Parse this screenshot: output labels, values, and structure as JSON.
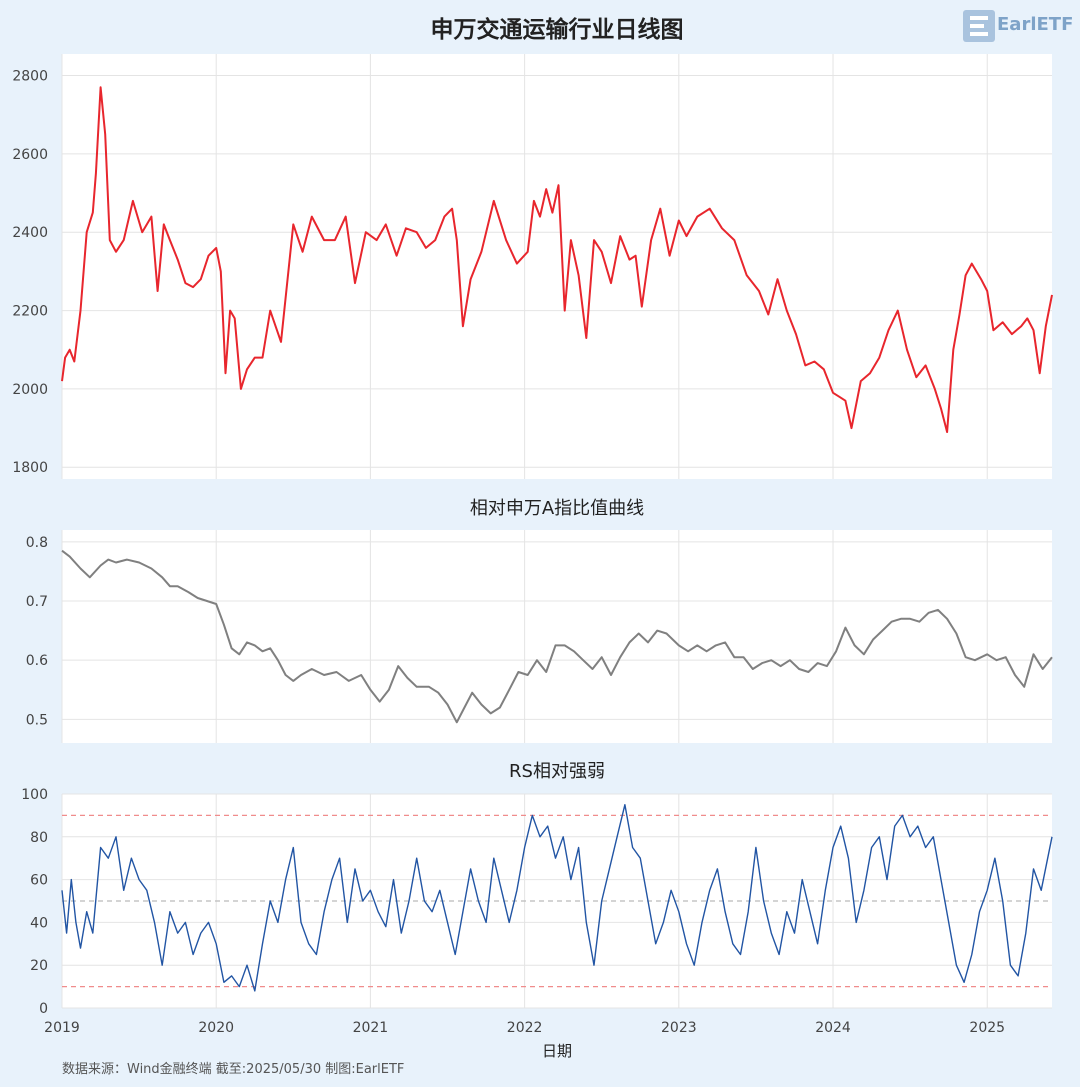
{
  "logo": {
    "text": "EarlETF",
    "icon": "e-logo-icon",
    "color": "#7ea3c8"
  },
  "source": "数据来源：Wind金融终端 截至:2025/05/30 制图:EarlETF",
  "chart_data": [
    {
      "type": "line",
      "title": "申万交通运输行业日线图",
      "color": "#e8262d",
      "xlim": [
        2019.0,
        2025.42
      ],
      "ylim": [
        1770,
        2855
      ],
      "yticks": [
        1800,
        2000,
        2200,
        2400,
        2600,
        2800
      ],
      "grid": true,
      "x": [
        2019.0,
        2019.02,
        2019.05,
        2019.08,
        2019.12,
        2019.16,
        2019.2,
        2019.22,
        2019.25,
        2019.28,
        2019.31,
        2019.35,
        2019.4,
        2019.46,
        2019.52,
        2019.58,
        2019.62,
        2019.66,
        2019.7,
        2019.75,
        2019.8,
        2019.85,
        2019.9,
        2019.95,
        2020.0,
        2020.03,
        2020.06,
        2020.09,
        2020.12,
        2020.16,
        2020.2,
        2020.25,
        2020.3,
        2020.35,
        2020.42,
        2020.5,
        2020.56,
        2020.62,
        2020.7,
        2020.77,
        2020.84,
        2020.9,
        2020.97,
        2021.04,
        2021.1,
        2021.17,
        2021.23,
        2021.3,
        2021.36,
        2021.42,
        2021.48,
        2021.53,
        2021.56,
        2021.6,
        2021.65,
        2021.72,
        2021.8,
        2021.88,
        2021.95,
        2022.02,
        2022.06,
        2022.1,
        2022.14,
        2022.18,
        2022.22,
        2022.26,
        2022.3,
        2022.35,
        2022.4,
        2022.45,
        2022.5,
        2022.56,
        2022.62,
        2022.68,
        2022.72,
        2022.76,
        2022.82,
        2022.88,
        2022.94,
        2023.0,
        2023.05,
        2023.12,
        2023.2,
        2023.28,
        2023.36,
        2023.44,
        2023.52,
        2023.58,
        2023.64,
        2023.7,
        2023.76,
        2023.82,
        2023.88,
        2023.94,
        2024.0,
        2024.04,
        2024.08,
        2024.12,
        2024.18,
        2024.24,
        2024.3,
        2024.36,
        2024.42,
        2024.48,
        2024.54,
        2024.6,
        2024.66,
        2024.7,
        2024.74,
        2024.78,
        2024.82,
        2024.86,
        2024.9,
        2024.96,
        2025.0,
        2025.04,
        2025.1,
        2025.16,
        2025.22,
        2025.26,
        2025.3,
        2025.34,
        2025.38,
        2025.42
      ],
      "y": [
        2020,
        2080,
        2100,
        2070,
        2200,
        2400,
        2450,
        2550,
        2770,
        2650,
        2380,
        2350,
        2380,
        2480,
        2400,
        2440,
        2250,
        2420,
        2380,
        2330,
        2270,
        2260,
        2280,
        2340,
        2360,
        2300,
        2040,
        2200,
        2180,
        2000,
        2050,
        2080,
        2080,
        2200,
        2120,
        2420,
        2350,
        2440,
        2380,
        2380,
        2440,
        2270,
        2400,
        2380,
        2420,
        2340,
        2410,
        2400,
        2360,
        2380,
        2440,
        2460,
        2380,
        2160,
        2280,
        2350,
        2480,
        2380,
        2320,
        2350,
        2480,
        2440,
        2510,
        2450,
        2520,
        2200,
        2380,
        2290,
        2130,
        2380,
        2350,
        2270,
        2390,
        2330,
        2340,
        2210,
        2380,
        2460,
        2340,
        2430,
        2390,
        2440,
        2460,
        2410,
        2380,
        2290,
        2250,
        2190,
        2280,
        2200,
        2140,
        2060,
        2070,
        2050,
        1990,
        1980,
        1970,
        1900,
        2020,
        2040,
        2080,
        2150,
        2200,
        2100,
        2030,
        2060,
        2000,
        1950,
        1890,
        2100,
        2190,
        2290,
        2320,
        2280,
        2250,
        2150,
        2170,
        2140,
        2160,
        2180,
        2150,
        2040,
        2160,
        2240
      ]
    },
    {
      "type": "line",
      "title": "相对申万A指比值曲线",
      "color": "#808080",
      "xlim": [
        2019.0,
        2025.42
      ],
      "ylim": [
        0.46,
        0.82
      ],
      "yticks": [
        0.5,
        0.6,
        0.7,
        0.8
      ],
      "grid": true,
      "x": [
        2019.0,
        2019.05,
        2019.12,
        2019.18,
        2019.25,
        2019.3,
        2019.35,
        2019.42,
        2019.5,
        2019.58,
        2019.65,
        2019.7,
        2019.75,
        2019.82,
        2019.88,
        2019.94,
        2020.0,
        2020.05,
        2020.1,
        2020.15,
        2020.2,
        2020.25,
        2020.3,
        2020.35,
        2020.4,
        2020.45,
        2020.5,
        2020.55,
        2020.62,
        2020.7,
        2020.78,
        2020.86,
        2020.94,
        2021.0,
        2021.06,
        2021.12,
        2021.18,
        2021.24,
        2021.3,
        2021.38,
        2021.44,
        2021.5,
        2021.56,
        2021.6,
        2021.66,
        2021.72,
        2021.78,
        2021.84,
        2021.9,
        2021.96,
        2022.02,
        2022.08,
        2022.14,
        2022.2,
        2022.26,
        2022.32,
        2022.38,
        2022.44,
        2022.5,
        2022.56,
        2022.62,
        2022.68,
        2022.74,
        2022.8,
        2022.86,
        2022.92,
        2023.0,
        2023.06,
        2023.12,
        2023.18,
        2023.24,
        2023.3,
        2023.36,
        2023.42,
        2023.48,
        2023.54,
        2023.6,
        2023.66,
        2023.72,
        2023.78,
        2023.84,
        2023.9,
        2023.96,
        2024.02,
        2024.08,
        2024.14,
        2024.2,
        2024.26,
        2024.32,
        2024.38,
        2024.44,
        2024.5,
        2024.56,
        2024.62,
        2024.68,
        2024.74,
        2024.8,
        2024.86,
        2024.92,
        2025.0,
        2025.06,
        2025.12,
        2025.18,
        2025.24,
        2025.3,
        2025.36,
        2025.42
      ],
      "y": [
        0.785,
        0.775,
        0.755,
        0.74,
        0.76,
        0.77,
        0.765,
        0.77,
        0.765,
        0.755,
        0.74,
        0.725,
        0.725,
        0.715,
        0.705,
        0.7,
        0.695,
        0.66,
        0.62,
        0.61,
        0.63,
        0.625,
        0.615,
        0.62,
        0.6,
        0.575,
        0.565,
        0.575,
        0.585,
        0.575,
        0.58,
        0.565,
        0.575,
        0.55,
        0.53,
        0.55,
        0.59,
        0.57,
        0.555,
        0.555,
        0.545,
        0.525,
        0.495,
        0.515,
        0.545,
        0.525,
        0.51,
        0.52,
        0.55,
        0.58,
        0.575,
        0.6,
        0.58,
        0.625,
        0.625,
        0.615,
        0.6,
        0.585,
        0.605,
        0.575,
        0.605,
        0.63,
        0.645,
        0.63,
        0.65,
        0.645,
        0.625,
        0.615,
        0.625,
        0.615,
        0.625,
        0.63,
        0.605,
        0.605,
        0.585,
        0.595,
        0.6,
        0.59,
        0.6,
        0.585,
        0.58,
        0.595,
        0.59,
        0.615,
        0.655,
        0.625,
        0.61,
        0.635,
        0.65,
        0.665,
        0.67,
        0.67,
        0.665,
        0.68,
        0.685,
        0.67,
        0.645,
        0.605,
        0.6,
        0.61,
        0.6,
        0.605,
        0.575,
        0.555,
        0.61,
        0.585,
        0.605
      ]
    },
    {
      "type": "line",
      "title": "RS相对强弱",
      "xlabel": "日期",
      "color": "#2255a4",
      "xlim": [
        2019.0,
        2025.42
      ],
      "ylim": [
        0,
        100
      ],
      "yticks": [
        0,
        20,
        40,
        60,
        80,
        100
      ],
      "xticks": [
        2019,
        2020,
        2021,
        2022,
        2023,
        2024,
        2025
      ],
      "xticklabels": [
        "2019",
        "2020",
        "2021",
        "2022",
        "2023",
        "2024",
        "2025"
      ],
      "grid": true,
      "reference_lines": [
        {
          "y": 90,
          "color": "#f08c8c",
          "style": "dashed"
        },
        {
          "y": 50,
          "color": "#bbbbbb",
          "style": "dashed"
        },
        {
          "y": 10,
          "color": "#f08c8c",
          "style": "dashed"
        }
      ],
      "x": [
        2019.0,
        2019.03,
        2019.06,
        2019.09,
        2019.12,
        2019.16,
        2019.2,
        2019.25,
        2019.3,
        2019.35,
        2019.4,
        2019.45,
        2019.5,
        2019.55,
        2019.6,
        2019.65,
        2019.7,
        2019.75,
        2019.8,
        2019.85,
        2019.9,
        2019.95,
        2020.0,
        2020.05,
        2020.1,
        2020.15,
        2020.2,
        2020.25,
        2020.3,
        2020.35,
        2020.4,
        2020.45,
        2020.5,
        2020.55,
        2020.6,
        2020.65,
        2020.7,
        2020.75,
        2020.8,
        2020.85,
        2020.9,
        2020.95,
        2021.0,
        2021.05,
        2021.1,
        2021.15,
        2021.2,
        2021.25,
        2021.3,
        2021.35,
        2021.4,
        2021.45,
        2021.5,
        2021.55,
        2021.6,
        2021.65,
        2021.7,
        2021.75,
        2021.8,
        2021.85,
        2021.9,
        2021.95,
        2022.0,
        2022.05,
        2022.1,
        2022.15,
        2022.2,
        2022.25,
        2022.3,
        2022.35,
        2022.4,
        2022.45,
        2022.5,
        2022.55,
        2022.6,
        2022.65,
        2022.7,
        2022.75,
        2022.8,
        2022.85,
        2022.9,
        2022.95,
        2023.0,
        2023.05,
        2023.1,
        2023.15,
        2023.2,
        2023.25,
        2023.3,
        2023.35,
        2023.4,
        2023.45,
        2023.5,
        2023.55,
        2023.6,
        2023.65,
        2023.7,
        2023.75,
        2023.8,
        2023.85,
        2023.9,
        2023.95,
        2024.0,
        2024.05,
        2024.1,
        2024.15,
        2024.2,
        2024.25,
        2024.3,
        2024.35,
        2024.4,
        2024.45,
        2024.5,
        2024.55,
        2024.6,
        2024.65,
        2024.7,
        2024.75,
        2024.8,
        2024.85,
        2024.9,
        2024.95,
        2025.0,
        2025.05,
        2025.1,
        2025.15,
        2025.2,
        2025.25,
        2025.3,
        2025.35,
        2025.42
      ],
      "y": [
        55,
        35,
        60,
        40,
        28,
        45,
        35,
        75,
        70,
        80,
        55,
        70,
        60,
        55,
        40,
        20,
        45,
        35,
        40,
        25,
        35,
        40,
        30,
        12,
        15,
        10,
        20,
        8,
        30,
        50,
        40,
        60,
        75,
        40,
        30,
        25,
        45,
        60,
        70,
        40,
        65,
        50,
        55,
        45,
        38,
        60,
        35,
        50,
        70,
        50,
        45,
        55,
        40,
        25,
        45,
        65,
        50,
        40,
        70,
        55,
        40,
        55,
        75,
        90,
        80,
        85,
        70,
        80,
        60,
        75,
        40,
        20,
        50,
        65,
        80,
        95,
        75,
        70,
        50,
        30,
        40,
        55,
        45,
        30,
        20,
        40,
        55,
        65,
        45,
        30,
        25,
        45,
        75,
        50,
        35,
        25,
        45,
        35,
        60,
        45,
        30,
        55,
        75,
        85,
        70,
        40,
        55,
        75,
        80,
        60,
        85,
        90,
        80,
        85,
        75,
        80,
        60,
        40,
        20,
        12,
        25,
        45,
        55,
        70,
        50,
        20,
        15,
        35,
        65,
        55,
        80
      ]
    }
  ]
}
